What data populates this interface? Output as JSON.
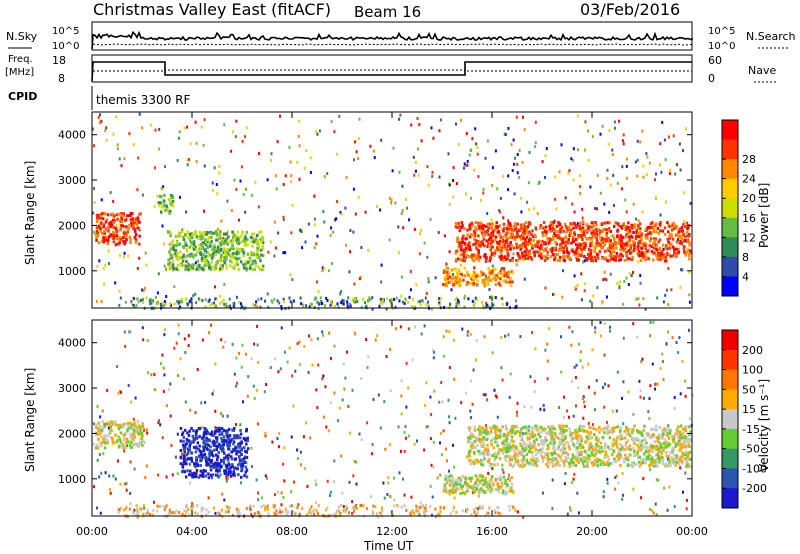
{
  "header": {
    "title": "Christmas Valley East (fitACF)",
    "beam": "Beam 16",
    "date": "03/Feb/2016"
  },
  "top_panels": {
    "nsky_label": "N.Sky",
    "nsearch_label": "N.Search",
    "count_ticks": [
      "10^5",
      "10^0"
    ],
    "freq_label": "Freq.",
    "freq_unit": "[MHz]",
    "freq_ticks": [
      "18",
      "8"
    ],
    "nave_label": "Nave",
    "nave_ticks": [
      "60",
      "0"
    ],
    "cpid_label": "CPID",
    "cpid_value": "themis 3300 RF"
  },
  "chart_data": [
    {
      "type": "heatmap",
      "name": "power",
      "ylabel": "Slant Range [km]",
      "xlabel": "",
      "xlim": [
        0,
        24
      ],
      "ylim": [
        180,
        4500
      ],
      "y_ticks": [
        1000,
        2000,
        3000,
        4000
      ],
      "colorbar": {
        "label": "Power [dB]",
        "ticks": [
          "4",
          "8",
          "12",
          "16",
          "20",
          "24",
          "28"
        ],
        "colors": [
          "#0000ff",
          "#2d4da8",
          "#2e8b57",
          "#66bb44",
          "#ccdd00",
          "#ffcc00",
          "#ff8800",
          "#ff3300",
          "#ff0000"
        ]
      },
      "regions": [
        {
          "t0": 0.1,
          "t1": 1.9,
          "r0": 1600,
          "r1": 2300,
          "level": 7
        },
        {
          "t0": 2.6,
          "t1": 3.2,
          "r0": 2300,
          "r1": 2700,
          "level": 3
        },
        {
          "t0": 3.0,
          "t1": 6.8,
          "r0": 1050,
          "r1": 1900,
          "level": 3
        },
        {
          "t0": 14.5,
          "t1": 23.9,
          "r0": 1250,
          "r1": 2100,
          "level": 7
        },
        {
          "t0": 14.0,
          "t1": 16.8,
          "r0": 700,
          "r1": 1100,
          "level": 6
        }
      ]
    },
    {
      "type": "heatmap",
      "name": "velocity",
      "ylabel": "Slant Range [km]",
      "xlabel": "Time UT",
      "xlim": [
        0,
        24
      ],
      "ylim": [
        180,
        4500
      ],
      "x_ticks": [
        "00:00",
        "04:00",
        "08:00",
        "12:00",
        "16:00",
        "20:00",
        "00:00"
      ],
      "y_ticks": [
        1000,
        2000,
        3000,
        4000
      ],
      "colorbar": {
        "label": "Velocity [m s⁻¹]",
        "ticks": [
          "200",
          "100",
          "50",
          "15",
          "-15",
          "-50",
          "-100",
          "-200"
        ],
        "colors": [
          "#1a1acc",
          "#2b55b0",
          "#339966",
          "#66cc33",
          "#c8c8c8",
          "#ffaa00",
          "#ff7700",
          "#ff3300",
          "#ee0000"
        ]
      },
      "regions": [
        {
          "t0": 0.1,
          "t1": 2.0,
          "r0": 1700,
          "r1": 2300,
          "level": 4
        },
        {
          "t0": 3.5,
          "t1": 6.2,
          "r0": 1050,
          "r1": 2150,
          "level": 0
        },
        {
          "t0": 15.0,
          "t1": 23.9,
          "r0": 1300,
          "r1": 2200,
          "level": 4
        },
        {
          "t0": 14.0,
          "t1": 16.8,
          "r0": 700,
          "r1": 1100,
          "level": 4
        }
      ]
    }
  ]
}
